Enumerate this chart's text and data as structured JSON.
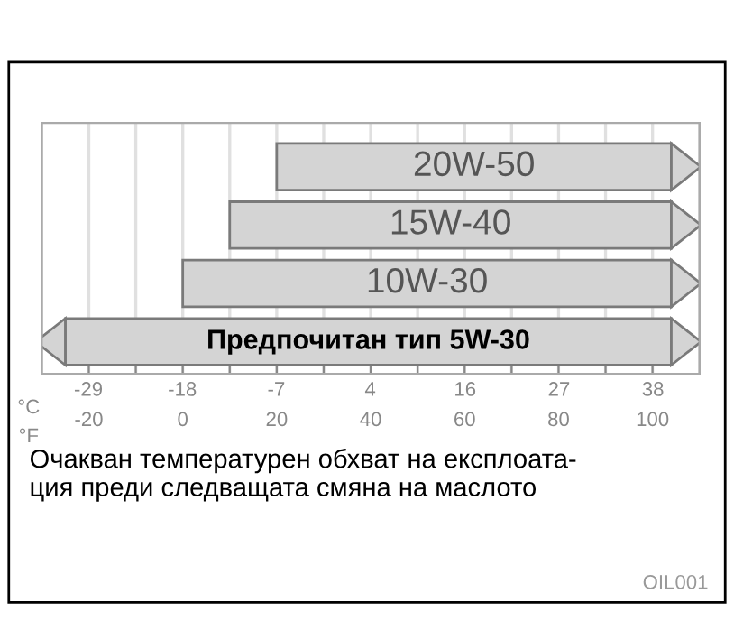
{
  "chart_data": {
    "type": "bar",
    "orientation": "horizontal",
    "categories": [
      "20W-50",
      "15W-40",
      "10W-30",
      "Предпочитан тип 5W-30"
    ],
    "base": [
      20,
      10,
      0,
      -25
    ],
    "values": [
      84,
      94,
      104,
      129
    ],
    "colors": [
      "#d4d4d4",
      "#d4d4d4",
      "#d4d4d4",
      "#d4d4d4"
    ],
    "xlim": [
      -30,
      110
    ],
    "xticks": [
      -20,
      {
        "value": -10,
        "label": null
      },
      0,
      {
        "value": 10,
        "label": null
      },
      20,
      {
        "value": 30,
        "label": null
      },
      40,
      {
        "value": 50,
        "label": null
      },
      60,
      {
        "value": 70,
        "label": null
      },
      80,
      {
        "value": 90,
        "label": null
      },
      100
    ],
    "xlabel": "°F",
    "x2label": "°C",
    "x2lim": [
      -34.4,
      43.3
    ],
    "x2ticks": [
      {
        "value": -28.9,
        "label": "-29"
      },
      {
        "value": -17.8,
        "label": "-18"
      },
      {
        "value": -6.7,
        "label": "-7"
      },
      {
        "value": 4.4,
        "label": "4"
      },
      {
        "value": 15.6,
        "label": "16"
      },
      {
        "value": 26.7,
        "label": "27"
      },
      {
        "value": 37.8,
        "label": "38"
      }
    ],
    "grid": "x",
    "tick_labels": "x",
    "annotations": [
      "Очакван температурен обхват на експлоата-\nция преди следващата смяна на маслото",
      "OIL001"
    ]
  }
}
